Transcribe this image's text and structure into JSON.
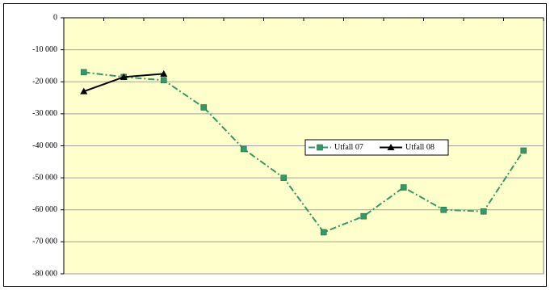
{
  "chart_data": {
    "type": "line",
    "categories": [
      null,
      null,
      null,
      null,
      null,
      null,
      null,
      null,
      null,
      null,
      null,
      null
    ],
    "series": [
      {
        "name": "Utfall 07",
        "color": "#339966",
        "marker": "square",
        "dash": "dashdot",
        "values": [
          -17000,
          -18500,
          -19500,
          -28000,
          -41000,
          -50000,
          -67000,
          -62000,
          -53000,
          -60000,
          -60500,
          -41500
        ]
      },
      {
        "name": "Utfall 08",
        "color": "#000000",
        "marker": "triangle",
        "dash": "solid",
        "values": [
          -23000,
          -18500,
          -17500,
          null,
          null,
          null,
          null,
          null,
          null,
          null,
          null,
          null
        ]
      }
    ],
    "ylim": [
      -80000,
      0
    ],
    "yticks": [
      0,
      {
        "value": -10000,
        "label": "-10 000"
      },
      {
        "value": -20000,
        "label": "-20 000"
      },
      {
        "value": -30000,
        "label": "-30 000"
      },
      {
        "value": -40000,
        "label": "-40 000"
      },
      {
        "value": -50000,
        "label": "-50 000"
      },
      {
        "value": -60000,
        "label": "-60 000"
      },
      {
        "value": -70000,
        "label": "-70 000"
      },
      {
        "value": -80000,
        "label": "-80 000"
      }
    ],
    "grid": true,
    "legend": "center",
    "background": "#ffffcc"
  }
}
